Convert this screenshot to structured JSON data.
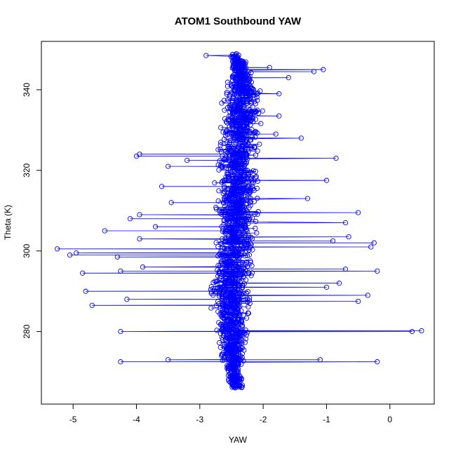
{
  "chart_data": {
    "type": "scatter",
    "title": "ATOM1 Southbound YAW",
    "xlabel": "YAW",
    "ylabel": "Theta (K)",
    "xlim": [
      -5.5,
      0.7
    ],
    "ylim": [
      262,
      352
    ],
    "x_ticks": [
      -5,
      -4,
      -3,
      -2,
      -1,
      0
    ],
    "y_ticks": [
      280,
      300,
      320,
      340
    ],
    "grid": false,
    "style": "points connected by lines (type='o')",
    "point_symbol": "open circle",
    "series_color": "#0000ff",
    "core": [
      {
        "theta": 266,
        "lo": -2.55,
        "hi": -2.25
      },
      {
        "theta": 270,
        "lo": -2.65,
        "hi": -2.3
      },
      {
        "theta": 276,
        "lo": -2.75,
        "hi": -2.2
      },
      {
        "theta": 282,
        "lo": -2.85,
        "hi": -2.15
      },
      {
        "theta": 290,
        "lo": -2.95,
        "hi": -2.1
      },
      {
        "theta": 298,
        "lo": -2.9,
        "hi": -2.05
      },
      {
        "theta": 306,
        "lo": -2.8,
        "hi": -2.05
      },
      {
        "theta": 314,
        "lo": -2.8,
        "hi": -2.0
      },
      {
        "theta": 322,
        "lo": -2.85,
        "hi": -2.0
      },
      {
        "theta": 330,
        "lo": -2.75,
        "hi": -1.95
      },
      {
        "theta": 338,
        "lo": -2.7,
        "hi": -1.9
      },
      {
        "theta": 344,
        "lo": -2.6,
        "hi": -2.1
      },
      {
        "theta": 349,
        "lo": -2.55,
        "hi": -2.35
      }
    ],
    "excursions": [
      {
        "theta": 272.5,
        "x": -4.25
      },
      {
        "theta": 272.5,
        "x": -0.2
      },
      {
        "theta": 273.0,
        "x": -3.5
      },
      {
        "theta": 273.0,
        "x": -1.1
      },
      {
        "theta": 280.0,
        "x": -4.25
      },
      {
        "theta": 280.0,
        "x": 0.35
      },
      {
        "theta": 280.2,
        "x": 0.5
      },
      {
        "theta": 286.5,
        "x": -4.7
      },
      {
        "theta": 287.5,
        "x": -0.5
      },
      {
        "theta": 288.0,
        "x": -4.15
      },
      {
        "theta": 289.0,
        "x": -0.35
      },
      {
        "theta": 290.0,
        "x": -4.8
      },
      {
        "theta": 291.0,
        "x": -1.0
      },
      {
        "theta": 292.0,
        "x": -0.8
      },
      {
        "theta": 294.5,
        "x": -4.85
      },
      {
        "theta": 295.0,
        "x": -4.25
      },
      {
        "theta": 295.0,
        "x": -0.2
      },
      {
        "theta": 295.5,
        "x": -0.7
      },
      {
        "theta": 296.0,
        "x": -3.9
      },
      {
        "theta": 298.5,
        "x": -4.3
      },
      {
        "theta": 299.0,
        "x": -5.05
      },
      {
        "theta": 299.5,
        "x": -4.95
      },
      {
        "theta": 300.5,
        "x": -5.25
      },
      {
        "theta": 301.0,
        "x": -0.3
      },
      {
        "theta": 302.0,
        "x": -0.25
      },
      {
        "theta": 302.5,
        "x": -0.9
      },
      {
        "theta": 303.0,
        "x": -3.95
      },
      {
        "theta": 303.5,
        "x": -0.65
      },
      {
        "theta": 305.0,
        "x": -4.5
      },
      {
        "theta": 306.0,
        "x": -3.7
      },
      {
        "theta": 307.0,
        "x": -0.7
      },
      {
        "theta": 308.0,
        "x": -4.1
      },
      {
        "theta": 309.0,
        "x": -3.95
      },
      {
        "theta": 309.5,
        "x": -0.5
      },
      {
        "theta": 312.0,
        "x": -3.45
      },
      {
        "theta": 313.0,
        "x": -1.3
      },
      {
        "theta": 316.0,
        "x": -3.6
      },
      {
        "theta": 317.5,
        "x": -1.0
      },
      {
        "theta": 321.0,
        "x": -3.5
      },
      {
        "theta": 322.5,
        "x": -3.2
      },
      {
        "theta": 323.0,
        "x": -0.85
      },
      {
        "theta": 323.5,
        "x": -4.0
      },
      {
        "theta": 324.0,
        "x": -3.95
      },
      {
        "theta": 328.0,
        "x": -1.4
      },
      {
        "theta": 329.0,
        "x": -1.8
      },
      {
        "theta": 333.5,
        "x": -1.75
      },
      {
        "theta": 339.0,
        "x": -1.75
      },
      {
        "theta": 343.0,
        "x": -1.6
      },
      {
        "theta": 344.5,
        "x": -1.2
      },
      {
        "theta": 345.0,
        "x": -1.05
      },
      {
        "theta": 345.5,
        "x": -1.9
      },
      {
        "theta": 348.5,
        "x": -2.9
      }
    ]
  }
}
